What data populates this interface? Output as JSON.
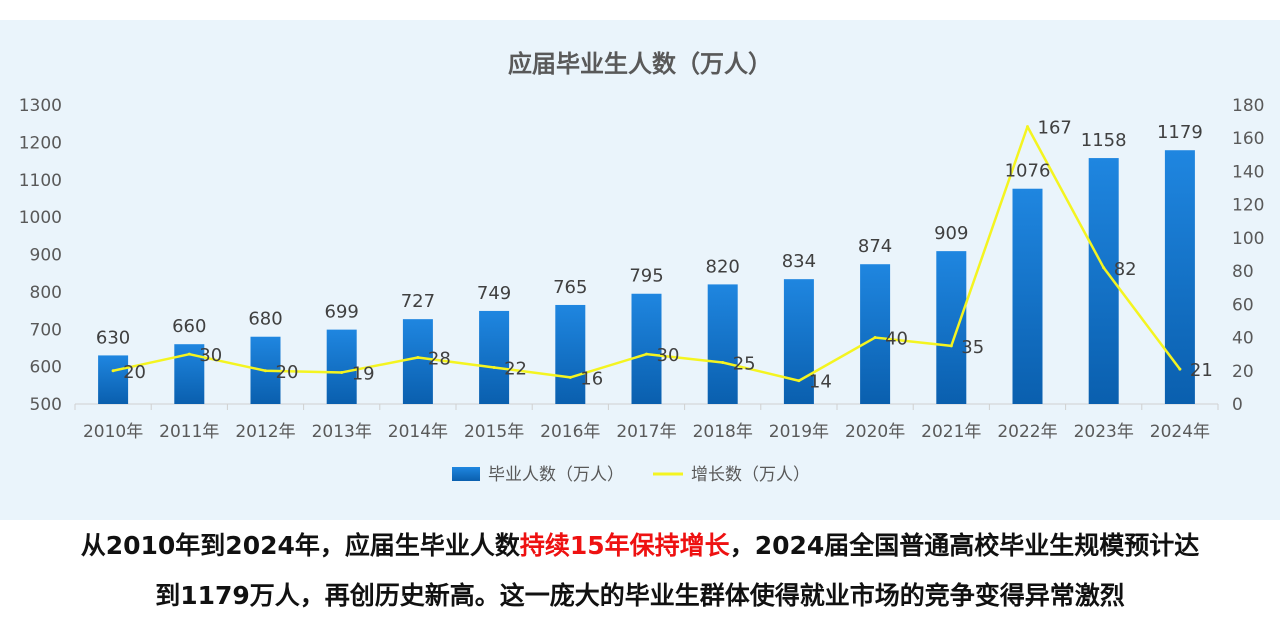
{
  "chart_data": {
    "type": "bar",
    "title": "应届毕业生人数（万人）",
    "categories": [
      "2010年",
      "2011年",
      "2012年",
      "2013年",
      "2014年",
      "2015年",
      "2016年",
      "2017年",
      "2018年",
      "2019年",
      "2020年",
      "2021年",
      "2022年",
      "2023年",
      "2024年"
    ],
    "series": [
      {
        "name": "毕业人数（万人）",
        "type": "bar",
        "axis": "left",
        "color": "#1f7fd6",
        "values": [
          630,
          660,
          680,
          699,
          727,
          749,
          765,
          795,
          820,
          834,
          874,
          909,
          1076,
          1158,
          1179
        ]
      },
      {
        "name": "增长数（万人）",
        "type": "line",
        "axis": "right",
        "color": "#f4f420",
        "values": [
          20,
          30,
          20,
          19,
          28,
          22,
          16,
          30,
          25,
          14,
          40,
          35,
          167,
          82,
          21
        ]
      }
    ],
    "y_left": {
      "min": 500,
      "max": 1300,
      "ticks": [
        500,
        600,
        700,
        800,
        900,
        1000,
        1100,
        1200,
        1300
      ]
    },
    "y_right": {
      "min": 0,
      "max": 180,
      "ticks": [
        0,
        20,
        40,
        60,
        80,
        100,
        120,
        140,
        160,
        180
      ]
    },
    "legend_position": "bottom",
    "grid": false
  },
  "caption": {
    "line1_a": "从2010年到2024年，应届生毕业人数",
    "line1_highlight": "持续15年保持增长",
    "line1_b": "，2024届全国普通高校毕业生规模预计达",
    "line2": "到1179万人，再创历史新高。这一庞大的毕业生群体使得就业市场的竞争变得异常激烈",
    "highlight_color": "#ee1111"
  }
}
